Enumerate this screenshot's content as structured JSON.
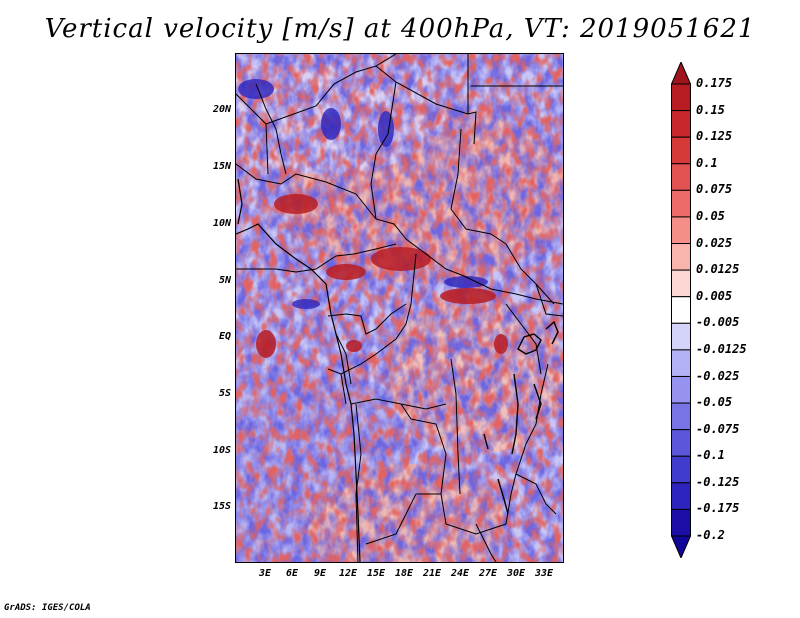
{
  "title": "Vertical velocity [m/s] at 400hPa, VT: 2019051621",
  "credit": "GrADS: IGES/COLA",
  "lat_ticks": [
    "20N",
    "15N",
    "10N",
    "5N",
    "EQ",
    "5S",
    "10S",
    "15S"
  ],
  "lon_ticks": [
    "3E",
    "6E",
    "9E",
    "12E",
    "15E",
    "18E",
    "21E",
    "24E",
    "27E",
    "30E",
    "33E"
  ],
  "colorbar": {
    "labels": [
      "0.175",
      "0.15",
      "0.125",
      "0.1",
      "0.075",
      "0.05",
      "0.025",
      "0.0125",
      "0.005",
      "-0.005",
      "-0.0125",
      "-0.025",
      "-0.05",
      "-0.075",
      "-0.1",
      "-0.125",
      "-0.175",
      "-0.2"
    ],
    "colors": [
      "#a0141e",
      "#b81c23",
      "#c8282b",
      "#d63a38",
      "#e25250",
      "#ec6c68",
      "#f48e88",
      "#f9b4ae",
      "#fcd6d2",
      "#ffffff",
      "#d4d4fb",
      "#b4b2f6",
      "#9692ef",
      "#7874e6",
      "#5c56db",
      "#423ccd",
      "#2c24bc",
      "#1a0ea6",
      "#10079a"
    ]
  },
  "chart_data": {
    "type": "heatmap",
    "title": "Vertical velocity [m/s] at 400hPa, VT: 2019051621",
    "variable": "Vertical velocity",
    "units": "m/s",
    "level": "400hPa",
    "valid_time": "2019051621",
    "lon_range": [
      0,
      35
    ],
    "lat_range": [
      -19,
      25
    ],
    "contour_levels": [
      -0.2,
      -0.175,
      -0.125,
      -0.1,
      -0.075,
      -0.05,
      -0.025,
      -0.0125,
      -0.005,
      0.005,
      0.0125,
      0.025,
      0.05,
      0.075,
      0.1,
      0.125,
      0.15,
      0.175
    ]
  }
}
